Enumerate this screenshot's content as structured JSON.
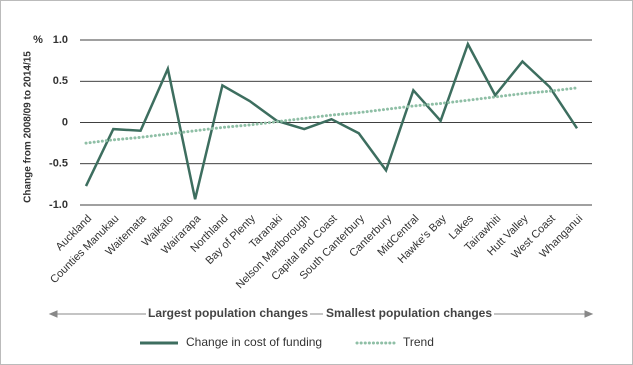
{
  "chart_data": {
    "type": "line",
    "y_label": "Change from 2008/09 to 2014/15",
    "y_unit": "%",
    "categories": [
      "Auckland",
      "Counties Manukau",
      "Waitemata",
      "Waikato",
      "Wairarapa",
      "Northland",
      "Bay of Plenty",
      "Taranaki",
      "Nelson Marlborough",
      "Capital and Coast",
      "South Canterbury",
      "Canterbury",
      "MidCentral",
      "Hawke's Bay",
      "Lakes",
      "Tairawhiti",
      "Hutt Valley",
      "West Coast",
      "Whanganui"
    ],
    "series": [
      {
        "name": "Change in cost of funding",
        "color": "#3d6e5f",
        "style": "solid",
        "values": [
          -0.77,
          -0.08,
          -0.1,
          0.65,
          -0.93,
          0.45,
          0.26,
          0.02,
          -0.08,
          0.04,
          -0.13,
          -0.58,
          0.39,
          0.02,
          0.95,
          0.33,
          0.74,
          0.43,
          -0.07
        ]
      },
      {
        "name": "Trend",
        "color": "#8fbfa6",
        "style": "dotted",
        "values": [
          -0.25,
          -0.21,
          -0.18,
          -0.14,
          -0.1,
          -0.06,
          -0.03,
          0.01,
          0.05,
          0.09,
          0.12,
          0.16,
          0.2,
          0.23,
          0.27,
          0.31,
          0.35,
          0.38,
          0.42
        ]
      }
    ],
    "ylim": [
      -1,
      1
    ],
    "yticks": [
      {
        "value": 1,
        "label": "1.0"
      },
      0.5,
      0,
      -0.5,
      {
        "value": -1,
        "label": "-1.0"
      }
    ],
    "grid": true,
    "annotations": [
      "Largest population changes",
      "Smallest population changes"
    ]
  }
}
